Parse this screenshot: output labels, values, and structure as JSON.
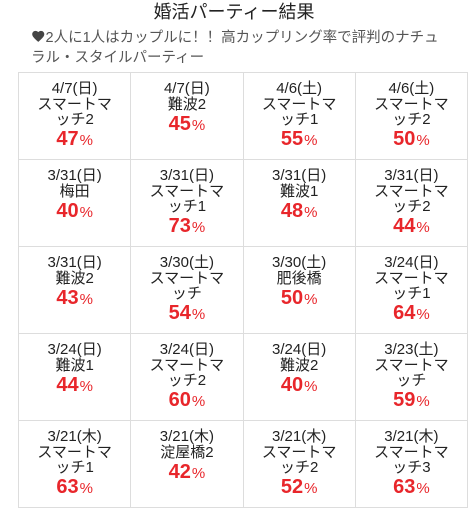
{
  "header": {
    "title": "婚活パーティー結果"
  },
  "subtitle": {
    "icon": "heart-icon",
    "text": "2人に1人はカップルに！！高カップリング率で評判のナチュラル・スタイルパーティー"
  },
  "colors": {
    "rate": "#e8262b",
    "text": "#222222",
    "subtitle": "#555555",
    "icon": "#444444",
    "border": "#dddddd"
  },
  "rate_unit": "%",
  "results": [
    {
      "date": "4/7(日)",
      "venue": "スマートマッチ2",
      "rate": 47
    },
    {
      "date": "4/7(日)",
      "venue": "難波2",
      "rate": 45
    },
    {
      "date": "4/6(土)",
      "venue": "スマートマッチ1",
      "rate": 55
    },
    {
      "date": "4/6(土)",
      "venue": "スマートマッチ2",
      "rate": 50
    },
    {
      "date": "3/31(日)",
      "venue": "梅田",
      "rate": 40
    },
    {
      "date": "3/31(日)",
      "venue": "スマートマッチ1",
      "rate": 73
    },
    {
      "date": "3/31(日)",
      "venue": "難波1",
      "rate": 48
    },
    {
      "date": "3/31(日)",
      "venue": "スマートマッチ2",
      "rate": 44
    },
    {
      "date": "3/31(日)",
      "venue": "難波2",
      "rate": 43
    },
    {
      "date": "3/30(土)",
      "venue": "スマートマッチ",
      "rate": 54
    },
    {
      "date": "3/30(土)",
      "venue": "肥後橋",
      "rate": 50
    },
    {
      "date": "3/24(日)",
      "venue": "スマートマッチ1",
      "rate": 64
    },
    {
      "date": "3/24(日)",
      "venue": "難波1",
      "rate": 44
    },
    {
      "date": "3/24(日)",
      "venue": "スマートマッチ2",
      "rate": 60
    },
    {
      "date": "3/24(日)",
      "venue": "難波2",
      "rate": 40
    },
    {
      "date": "3/23(土)",
      "venue": "スマートマッチ",
      "rate": 59
    },
    {
      "date": "3/21(木)",
      "venue": "スマートマッチ1",
      "rate": 63
    },
    {
      "date": "3/21(木)",
      "venue": "淀屋橋2",
      "rate": 42
    },
    {
      "date": "3/21(木)",
      "venue": "スマートマッチ2",
      "rate": 52
    },
    {
      "date": "3/21(木)",
      "venue": "スマートマッチ3",
      "rate": 63
    }
  ]
}
